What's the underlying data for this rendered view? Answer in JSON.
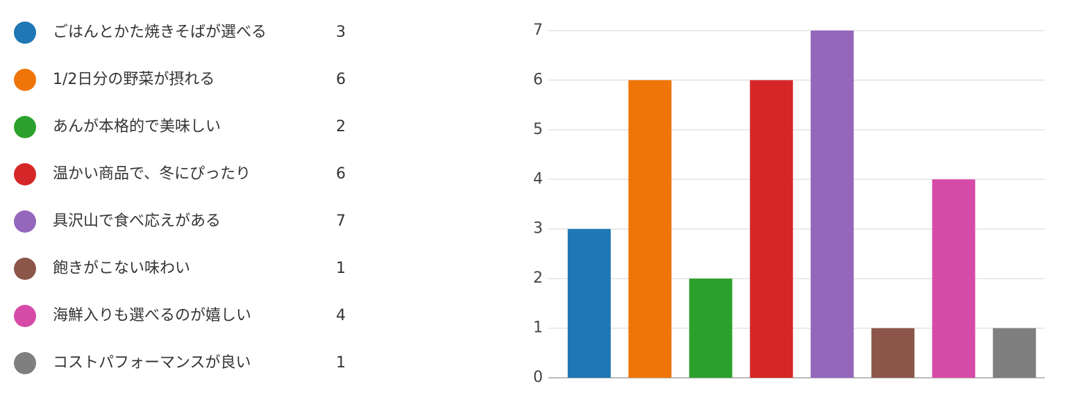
{
  "chart_data": {
    "type": "bar",
    "categories": [
      "ごはんとかた焼きそばが選べる",
      "1/2日分の野菜が摂れる",
      "あんが本格的で美味しい",
      "温かい商品で、冬にぴったり",
      "具沢山で食べ応えがある",
      "飽きがこない味わい",
      "海鮮入りも選べるのが嬉しい",
      "コストパフォーマンスが良い"
    ],
    "values": [
      3,
      6,
      2,
      6,
      7,
      1,
      4,
      1
    ],
    "colors": [
      "#1f77b4",
      "#ef7508",
      "#2ca02c",
      "#d62728",
      "#9467bd",
      "#8c564b",
      "#d64ba8",
      "#7f7f7f"
    ],
    "ylim": [
      0,
      7
    ],
    "yticks": [
      0,
      1,
      2,
      3,
      4,
      5,
      6,
      7
    ],
    "grid": true
  }
}
